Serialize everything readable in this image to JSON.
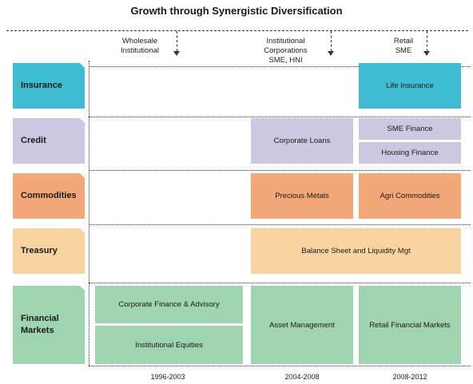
{
  "title": "Growth through Synergistic Diversification",
  "columns": [
    {
      "label_line1": "Wholesale",
      "label_line2": "Institutional",
      "label_line3": ""
    },
    {
      "label_line1": "Institutional",
      "label_line2": "Corporations",
      "label_line3": "SME, HNI"
    },
    {
      "label_line1": "Retail",
      "label_line2": "SME",
      "label_line3": ""
    }
  ],
  "categories": {
    "insurance": "Insurance",
    "credit": "Credit",
    "commodities": "Commodities",
    "treasury": "Treasury",
    "financial_markets_line1": "Financial",
    "financial_markets_line2": "Markets"
  },
  "cells": {
    "life_insurance": "Life Insurance",
    "corporate_loans": "Corporate Loans",
    "sme_finance": "SME Finance",
    "housing_finance": "Housing Finance",
    "precious_metals": "Precious Metals",
    "agri_commodities": "Agri Commodities",
    "balance_sheet": "Balance Sheet and Liquidity Mgt",
    "corporate_finance": "Corporate Finance & Advisory",
    "institutional_equities": "Institutional Equities",
    "asset_management": "Asset Management",
    "retail_financial_markets": "Retail Financial Markets"
  },
  "years": [
    "1996-2003",
    "2004-2008",
    "2008-2012"
  ],
  "colors": {
    "insurance": "#40bcd2",
    "credit": "#cdc7e2",
    "commodities": "#f2a878",
    "treasury": "#fad3a2",
    "financial_markets": "#9fd4b1",
    "lines": "#2a3a44"
  }
}
